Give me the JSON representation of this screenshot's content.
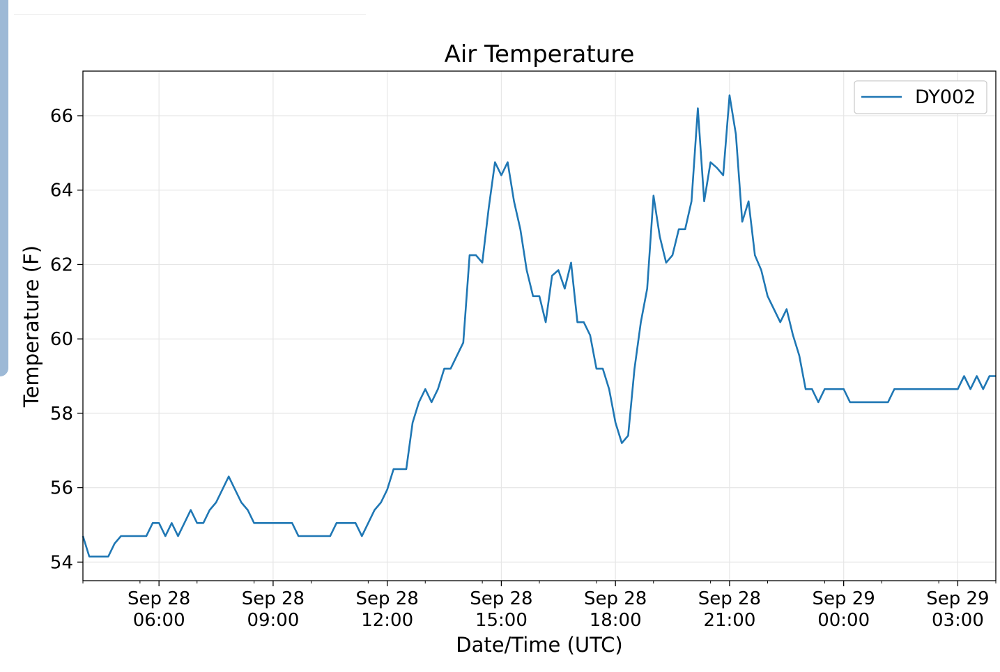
{
  "chart_data": {
    "type": "line",
    "title": "Air Temperature",
    "xlabel": "Date/Time (UTC)",
    "ylabel": "Temperature (F)",
    "grid": true,
    "legend": "top-right",
    "xlim": [
      "2019-09-28T04:00Z",
      "2019-09-29T04:00Z"
    ],
    "ylim": [
      53.5,
      67.2
    ],
    "yticks": [
      54,
      56,
      58,
      60,
      62,
      64,
      66
    ],
    "xticks": [
      {
        "t": "2019-09-28T06:00Z",
        "line1": "Sep 28",
        "line2": "06:00"
      },
      {
        "t": "2019-09-28T09:00Z",
        "line1": "Sep 28",
        "line2": "09:00"
      },
      {
        "t": "2019-09-28T12:00Z",
        "line1": "Sep 28",
        "line2": "12:00"
      },
      {
        "t": "2019-09-28T15:00Z",
        "line1": "Sep 28",
        "line2": "15:00"
      },
      {
        "t": "2019-09-28T18:00Z",
        "line1": "Sep 28",
        "line2": "18:00"
      },
      {
        "t": "2019-09-28T21:00Z",
        "line1": "Sep 28",
        "line2": "21:00"
      },
      {
        "t": "2019-09-29T00:00Z",
        "line1": "Sep 29",
        "line2": "00:00"
      },
      {
        "t": "2019-09-29T03:00Z",
        "line1": "Sep 29",
        "line2": "03:00"
      }
    ],
    "series": [
      {
        "name": "DY002",
        "color": "#1f77b4",
        "points": [
          [
            "2019-09-28T04:00Z",
            54.7
          ],
          [
            "2019-09-28T04:10Z",
            54.15
          ],
          [
            "2019-09-28T04:20Z",
            54.15
          ],
          [
            "2019-09-28T04:30Z",
            54.15
          ],
          [
            "2019-09-28T04:40Z",
            54.15
          ],
          [
            "2019-09-28T04:50Z",
            54.5
          ],
          [
            "2019-09-28T05:00Z",
            54.7
          ],
          [
            "2019-09-28T05:10Z",
            54.7
          ],
          [
            "2019-09-28T05:20Z",
            54.7
          ],
          [
            "2019-09-28T05:30Z",
            54.7
          ],
          [
            "2019-09-28T05:40Z",
            54.7
          ],
          [
            "2019-09-28T05:50Z",
            55.05
          ],
          [
            "2019-09-28T06:00Z",
            55.05
          ],
          [
            "2019-09-28T06:10Z",
            54.7
          ],
          [
            "2019-09-28T06:20Z",
            55.05
          ],
          [
            "2019-09-28T06:30Z",
            54.7
          ],
          [
            "2019-09-28T06:40Z",
            55.05
          ],
          [
            "2019-09-28T06:50Z",
            55.4
          ],
          [
            "2019-09-28T07:00Z",
            55.05
          ],
          [
            "2019-09-28T07:10Z",
            55.05
          ],
          [
            "2019-09-28T07:20Z",
            55.4
          ],
          [
            "2019-09-28T07:30Z",
            55.6
          ],
          [
            "2019-09-28T07:40Z",
            55.95
          ],
          [
            "2019-09-28T07:50Z",
            56.3
          ],
          [
            "2019-09-28T08:00Z",
            55.95
          ],
          [
            "2019-09-28T08:10Z",
            55.6
          ],
          [
            "2019-09-28T08:20Z",
            55.4
          ],
          [
            "2019-09-28T08:30Z",
            55.05
          ],
          [
            "2019-09-28T08:40Z",
            55.05
          ],
          [
            "2019-09-28T08:50Z",
            55.05
          ],
          [
            "2019-09-28T09:00Z",
            55.05
          ],
          [
            "2019-09-28T09:10Z",
            55.05
          ],
          [
            "2019-09-28T09:20Z",
            55.05
          ],
          [
            "2019-09-28T09:30Z",
            55.05
          ],
          [
            "2019-09-28T09:40Z",
            54.7
          ],
          [
            "2019-09-28T09:50Z",
            54.7
          ],
          [
            "2019-09-28T10:00Z",
            54.7
          ],
          [
            "2019-09-28T10:10Z",
            54.7
          ],
          [
            "2019-09-28T10:20Z",
            54.7
          ],
          [
            "2019-09-28T10:30Z",
            54.7
          ],
          [
            "2019-09-28T10:40Z",
            55.05
          ],
          [
            "2019-09-28T10:50Z",
            55.05
          ],
          [
            "2019-09-28T11:00Z",
            55.05
          ],
          [
            "2019-09-28T11:10Z",
            55.05
          ],
          [
            "2019-09-28T11:20Z",
            54.7
          ],
          [
            "2019-09-28T11:30Z",
            55.05
          ],
          [
            "2019-09-28T11:40Z",
            55.4
          ],
          [
            "2019-09-28T11:50Z",
            55.6
          ],
          [
            "2019-09-28T12:00Z",
            55.95
          ],
          [
            "2019-09-28T12:10Z",
            56.5
          ],
          [
            "2019-09-28T12:20Z",
            56.5
          ],
          [
            "2019-09-28T12:30Z",
            56.5
          ],
          [
            "2019-09-28T12:40Z",
            57.75
          ],
          [
            "2019-09-28T12:50Z",
            58.3
          ],
          [
            "2019-09-28T13:00Z",
            58.65
          ],
          [
            "2019-09-28T13:10Z",
            58.3
          ],
          [
            "2019-09-28T13:20Z",
            58.65
          ],
          [
            "2019-09-28T13:30Z",
            59.2
          ],
          [
            "2019-09-28T13:40Z",
            59.2
          ],
          [
            "2019-09-28T13:50Z",
            59.55
          ],
          [
            "2019-09-28T14:00Z",
            59.9
          ],
          [
            "2019-09-28T14:10Z",
            62.25
          ],
          [
            "2019-09-28T14:20Z",
            62.25
          ],
          [
            "2019-09-28T14:30Z",
            62.05
          ],
          [
            "2019-09-28T14:40Z",
            63.5
          ],
          [
            "2019-09-28T14:50Z",
            64.75
          ],
          [
            "2019-09-28T15:00Z",
            64.4
          ],
          [
            "2019-09-28T15:10Z",
            64.75
          ],
          [
            "2019-09-28T15:20Z",
            63.7
          ],
          [
            "2019-09-28T15:30Z",
            62.95
          ],
          [
            "2019-09-28T15:40Z",
            61.85
          ],
          [
            "2019-09-28T15:50Z",
            61.15
          ],
          [
            "2019-09-28T16:00Z",
            61.15
          ],
          [
            "2019-09-28T16:10Z",
            60.45
          ],
          [
            "2019-09-28T16:20Z",
            61.7
          ],
          [
            "2019-09-28T16:30Z",
            61.85
          ],
          [
            "2019-09-28T16:40Z",
            61.35
          ],
          [
            "2019-09-28T16:50Z",
            62.05
          ],
          [
            "2019-09-28T17:00Z",
            60.45
          ],
          [
            "2019-09-28T17:10Z",
            60.45
          ],
          [
            "2019-09-28T17:20Z",
            60.1
          ],
          [
            "2019-09-28T17:30Z",
            59.2
          ],
          [
            "2019-09-28T17:40Z",
            59.2
          ],
          [
            "2019-09-28T17:50Z",
            58.65
          ],
          [
            "2019-09-28T18:00Z",
            57.75
          ],
          [
            "2019-09-28T18:10Z",
            57.2
          ],
          [
            "2019-09-28T18:20Z",
            57.4
          ],
          [
            "2019-09-28T18:30Z",
            59.2
          ],
          [
            "2019-09-28T18:40Z",
            60.45
          ],
          [
            "2019-09-28T18:50Z",
            61.35
          ],
          [
            "2019-09-28T19:00Z",
            63.85
          ],
          [
            "2019-09-28T19:10Z",
            62.75
          ],
          [
            "2019-09-28T19:20Z",
            62.05
          ],
          [
            "2019-09-28T19:30Z",
            62.25
          ],
          [
            "2019-09-28T19:40Z",
            62.95
          ],
          [
            "2019-09-28T19:50Z",
            62.95
          ],
          [
            "2019-09-28T20:00Z",
            63.7
          ],
          [
            "2019-09-28T20:10Z",
            66.2
          ],
          [
            "2019-09-28T20:20Z",
            63.7
          ],
          [
            "2019-09-28T20:30Z",
            64.75
          ],
          [
            "2019-09-28T20:40Z",
            64.6
          ],
          [
            "2019-09-28T20:50Z",
            64.4
          ],
          [
            "2019-09-28T21:00Z",
            66.55
          ],
          [
            "2019-09-28T21:10Z",
            65.5
          ],
          [
            "2019-09-28T21:20Z",
            63.15
          ],
          [
            "2019-09-28T21:30Z",
            63.7
          ],
          [
            "2019-09-28T21:40Z",
            62.25
          ],
          [
            "2019-09-28T21:50Z",
            61.85
          ],
          [
            "2019-09-28T22:00Z",
            61.15
          ],
          [
            "2019-09-28T22:10Z",
            60.8
          ],
          [
            "2019-09-28T22:20Z",
            60.45
          ],
          [
            "2019-09-28T22:30Z",
            60.8
          ],
          [
            "2019-09-28T22:40Z",
            60.1
          ],
          [
            "2019-09-28T22:50Z",
            59.55
          ],
          [
            "2019-09-28T23:00Z",
            58.65
          ],
          [
            "2019-09-28T23:10Z",
            58.65
          ],
          [
            "2019-09-28T23:20Z",
            58.3
          ],
          [
            "2019-09-28T23:30Z",
            58.65
          ],
          [
            "2019-09-28T23:40Z",
            58.65
          ],
          [
            "2019-09-28T23:50Z",
            58.65
          ],
          [
            "2019-09-29T00:00Z",
            58.65
          ],
          [
            "2019-09-29T00:10Z",
            58.3
          ],
          [
            "2019-09-29T00:20Z",
            58.3
          ],
          [
            "2019-09-29T00:30Z",
            58.3
          ],
          [
            "2019-09-29T00:40Z",
            58.3
          ],
          [
            "2019-09-29T00:50Z",
            58.3
          ],
          [
            "2019-09-29T01:00Z",
            58.3
          ],
          [
            "2019-09-29T01:10Z",
            58.3
          ],
          [
            "2019-09-29T01:20Z",
            58.65
          ],
          [
            "2019-09-29T01:30Z",
            58.65
          ],
          [
            "2019-09-29T01:40Z",
            58.65
          ],
          [
            "2019-09-29T01:50Z",
            58.65
          ],
          [
            "2019-09-29T02:00Z",
            58.65
          ],
          [
            "2019-09-29T02:10Z",
            58.65
          ],
          [
            "2019-09-29T02:20Z",
            58.65
          ],
          [
            "2019-09-29T02:30Z",
            58.65
          ],
          [
            "2019-09-29T02:40Z",
            58.65
          ],
          [
            "2019-09-29T02:50Z",
            58.65
          ],
          [
            "2019-09-29T03:00Z",
            58.65
          ],
          [
            "2019-09-29T03:10Z",
            59.0
          ],
          [
            "2019-09-29T03:20Z",
            58.65
          ],
          [
            "2019-09-29T03:30Z",
            59.0
          ],
          [
            "2019-09-29T03:40Z",
            58.65
          ],
          [
            "2019-09-29T03:50Z",
            59.0
          ],
          [
            "2019-09-29T04:00Z",
            59.0
          ]
        ]
      }
    ]
  }
}
